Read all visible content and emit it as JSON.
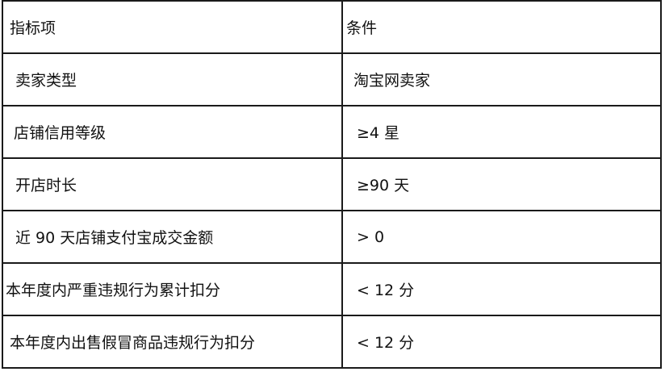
{
  "table": {
    "headers": [
      "指标项",
      "条件"
    ],
    "rows": [
      [
        "卖家类型",
        "淘宝网卖家"
      ],
      [
        "店铺信用等级",
        "≥4 星"
      ],
      [
        "开店时长",
        "≥90 天"
      ],
      [
        "近 90 天店铺支付宝成交金额",
        "> 0"
      ],
      [
        "本年度内严重违规行为累计扣分",
        "< 12 分"
      ],
      [
        "本年度内出售假冒商品违规行为扣分",
        "< 12 分"
      ]
    ]
  }
}
